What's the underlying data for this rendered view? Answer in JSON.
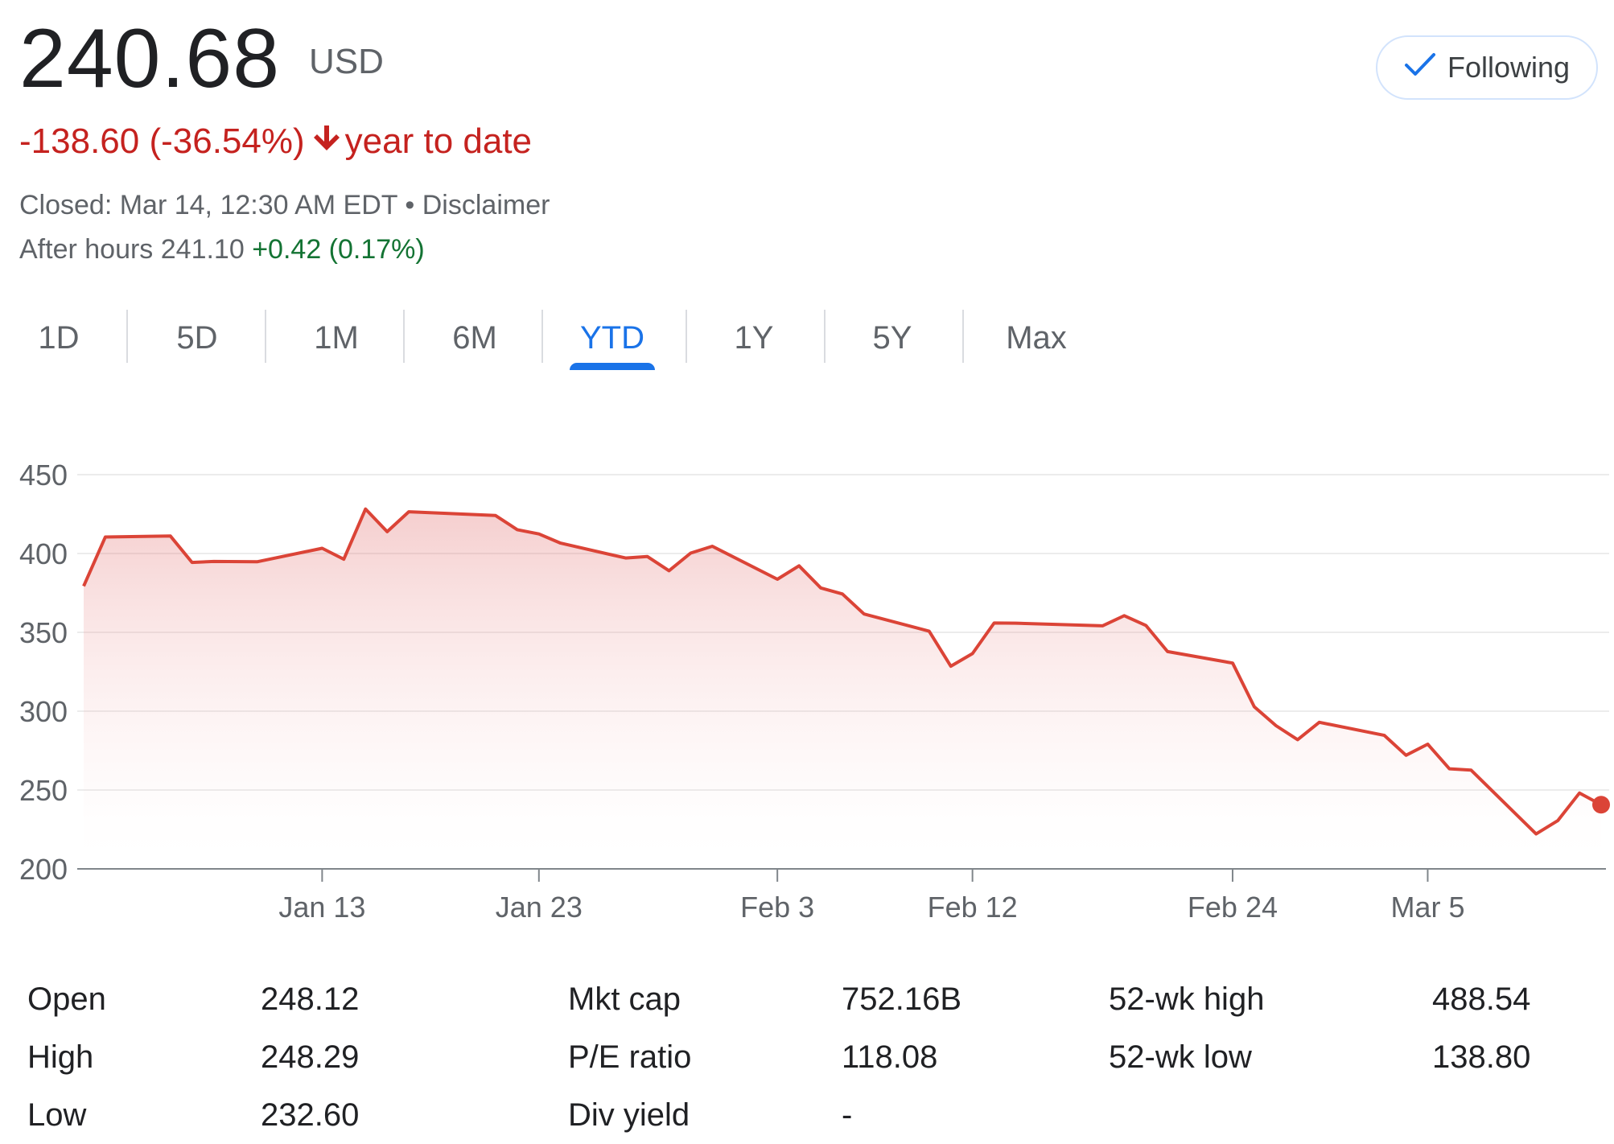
{
  "header": {
    "price": "240.68",
    "currency": "USD",
    "change": "-138.60 (-36.54%)",
    "period": "year to date",
    "closed": "Closed: Mar 14, 12:30 AM EDT",
    "separator": "•",
    "disclaimer": "Disclaimer",
    "after_hours_label": "After hours 241.10",
    "after_hours_change": "+0.42 (0.17%)",
    "follow_label": "Following"
  },
  "colors": {
    "negative": "#c5221f",
    "positive": "#137333",
    "accent": "#1a73e8",
    "line": "#db4437"
  },
  "icons": {
    "follow": "check-icon",
    "change": "arrow-down-icon"
  },
  "tabs": [
    {
      "label": "1D",
      "active": false
    },
    {
      "label": "5D",
      "active": false
    },
    {
      "label": "1M",
      "active": false
    },
    {
      "label": "6M",
      "active": false
    },
    {
      "label": "YTD",
      "active": true
    },
    {
      "label": "1Y",
      "active": false
    },
    {
      "label": "5Y",
      "active": false
    },
    {
      "label": "Max",
      "active": false
    }
  ],
  "chart_data": {
    "type": "area",
    "title": "",
    "xlabel": "",
    "ylabel": "",
    "ylim": [
      200,
      450
    ],
    "yticks": [
      200,
      250,
      300,
      350,
      400,
      450
    ],
    "x_tick_labels": [
      "Jan 13",
      "Jan 23",
      "Feb 3",
      "Feb 12",
      "Feb 24",
      "Mar 5"
    ],
    "x_tick_dates": [
      "2025-01-13",
      "2025-01-23",
      "2025-02-03",
      "2025-02-12",
      "2025-02-24",
      "2025-03-05"
    ],
    "grid": true,
    "series": [
      {
        "x": [
          "2025-01-02",
          "2025-01-03",
          "2025-01-06",
          "2025-01-07",
          "2025-01-08",
          "2025-01-10",
          "2025-01-13",
          "2025-01-14",
          "2025-01-15",
          "2025-01-16",
          "2025-01-17",
          "2025-01-21",
          "2025-01-22",
          "2025-01-23",
          "2025-01-24",
          "2025-01-27",
          "2025-01-28",
          "2025-01-29",
          "2025-01-30",
          "2025-01-31",
          "2025-02-03",
          "2025-02-04",
          "2025-02-05",
          "2025-02-06",
          "2025-02-07",
          "2025-02-10",
          "2025-02-11",
          "2025-02-12",
          "2025-02-13",
          "2025-02-14",
          "2025-02-18",
          "2025-02-19",
          "2025-02-20",
          "2025-02-21",
          "2025-02-24",
          "2025-02-25",
          "2025-02-26",
          "2025-02-27",
          "2025-02-28",
          "2025-03-03",
          "2025-03-04",
          "2025-03-05",
          "2025-03-06",
          "2025-03-07",
          "2025-03-10",
          "2025-03-11",
          "2025-03-12",
          "2025-03-13"
        ],
        "values": [
          379.28,
          410.44,
          411.05,
          394.36,
          394.94,
          394.74,
          403.31,
          396.36,
          428.22,
          413.82,
          426.5,
          424.07,
          415.11,
          412.38,
          406.58,
          397.15,
          398.09,
          389.1,
          400.28,
          404.6,
          383.68,
          392.21,
          378.17,
          374.32,
          361.62,
          350.73,
          328.5,
          336.51,
          355.94,
          355.84,
          354.11,
          360.56,
          354.4,
          337.8,
          330.53,
          302.8,
          290.8,
          281.95,
          292.98,
          284.65,
          272.04,
          279.1,
          263.45,
          262.67,
          222.15,
          230.58,
          248.09,
          240.68
        ]
      }
    ]
  },
  "stats": {
    "open": {
      "label": "Open",
      "value": "248.12"
    },
    "high": {
      "label": "High",
      "value": "248.29"
    },
    "low": {
      "label": "Low",
      "value": "232.60"
    },
    "mktcap": {
      "label": "Mkt cap",
      "value": "752.16B"
    },
    "pe": {
      "label": "P/E ratio",
      "value": "118.08"
    },
    "div": {
      "label": "Div yield",
      "value": "-"
    },
    "wkhigh": {
      "label": "52-wk high",
      "value": "488.54"
    },
    "wklow": {
      "label": "52-wk low",
      "value": "138.80"
    }
  }
}
